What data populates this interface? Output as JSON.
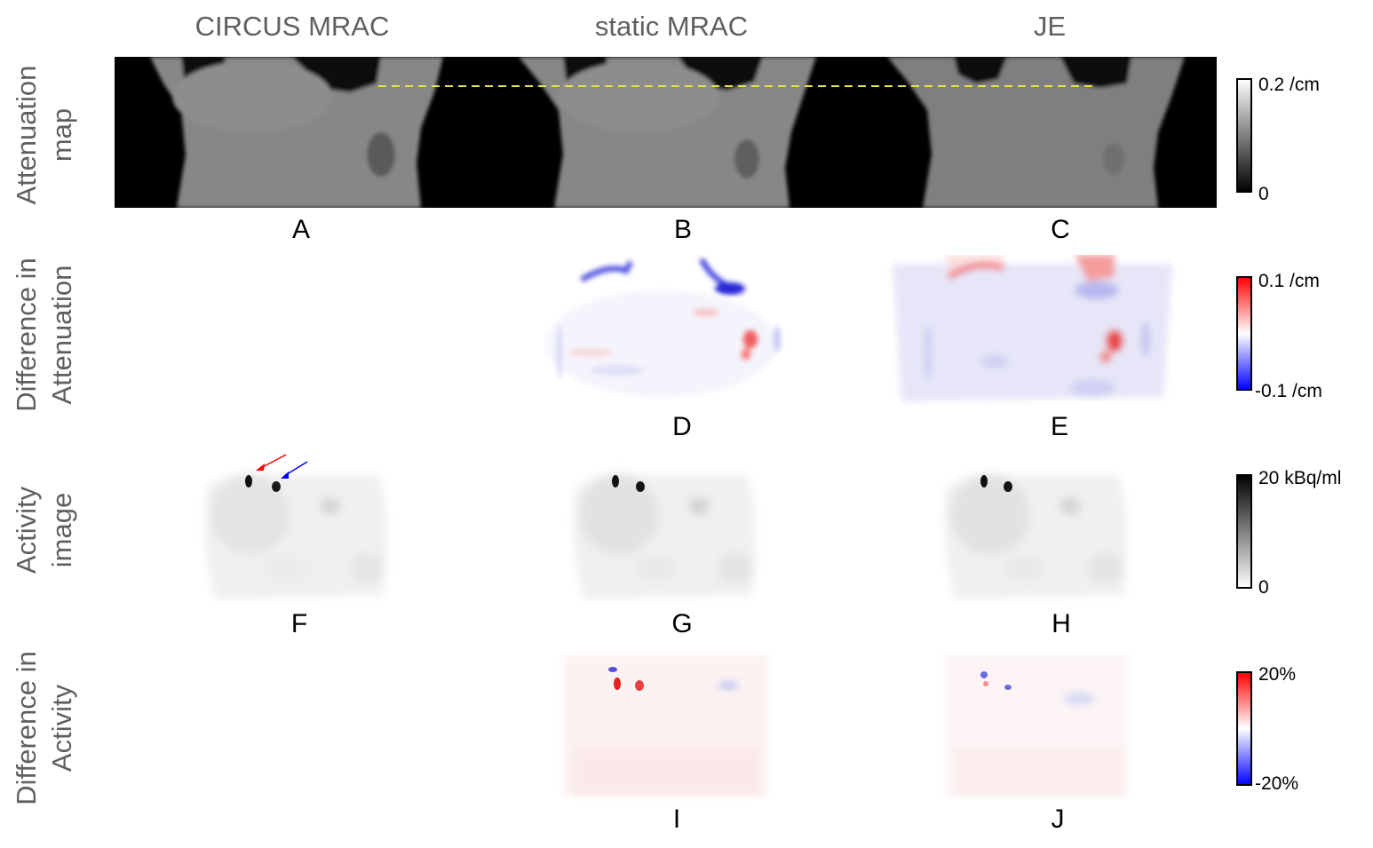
{
  "column_titles": [
    "CIRCUS MRAC",
    "static MRAC",
    "JE"
  ],
  "row_labels": [
    {
      "line1": "Attenuation",
      "line2": "map"
    },
    {
      "line1": "Difference in",
      "line2": "Attenuation"
    },
    {
      "line1": "Activity",
      "line2": "image"
    },
    {
      "line1": "Difference in",
      "line2": "Activity"
    }
  ],
  "panel_letters": [
    "A",
    "B",
    "C",
    "D",
    "E",
    "F",
    "G",
    "H",
    "I",
    "J"
  ],
  "colorbars": [
    {
      "max_label": "0.2 /cm",
      "min_label": "0",
      "scale": "gray",
      "top_color": "#ffffff",
      "bottom_color": "#000000"
    },
    {
      "max_label": "0.1 /cm",
      "min_label": "-0.1 /cm",
      "scale": "red-white-blue",
      "top_color": "#ff0000",
      "bottom_color": "#0000ff"
    },
    {
      "max_label": "20 kBq/ml",
      "min_label": "0",
      "scale": "gray-inverted",
      "top_color": "#000000",
      "bottom_color": "#ffffff"
    },
    {
      "max_label": "20%",
      "min_label": "-20%",
      "scale": "red-white-blue",
      "top_color": "#ff0000",
      "bottom_color": "#0000ff"
    }
  ],
  "colors": {
    "title_gray": "#5f5f5f",
    "profile_line": "#e8e04a",
    "arrow_red": "#ff0000",
    "arrow_blue": "#0000ff"
  }
}
